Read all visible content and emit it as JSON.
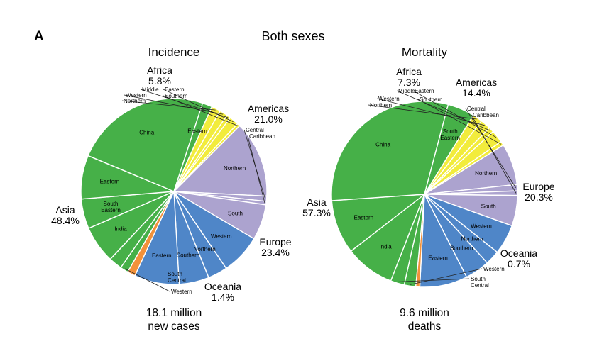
{
  "figure": {
    "panel_letter": "A",
    "title": "Both sexes"
  },
  "colors": {
    "Africa": "#f2ec3c",
    "Americas": "#aca3cf",
    "Europe": "#4f86c8",
    "Oceania": "#f2913a",
    "Asia": "#46b048"
  },
  "chart_data": [
    {
      "type": "pie",
      "title": "Incidence",
      "caption": [
        "18.1 million",
        "new cases"
      ],
      "regions": [
        {
          "name": "Americas",
          "pct_label": "21.0%",
          "value": 21.0,
          "subregions": [
            {
              "name": "Northern",
              "value": 13.3
            },
            {
              "name": "Central",
              "value": 0.9
            },
            {
              "name": "Caribbean",
              "value": 0.6
            },
            {
              "name": "South",
              "value": 6.2
            }
          ]
        },
        {
          "name": "Europe",
          "pct_label": "23.4%",
          "value": 23.4,
          "subregions": [
            {
              "name": "Western",
              "value": 7.0
            },
            {
              "name": "Northern",
              "value": 3.4
            },
            {
              "name": "Southern",
              "value": 5.2
            },
            {
              "name": "Eastern",
              "value": 7.8
            }
          ]
        },
        {
          "name": "Oceania",
          "pct_label": "1.4%",
          "value": 1.4,
          "subregions": [
            {
              "name": "",
              "value": 1.4
            }
          ]
        },
        {
          "name": "Asia",
          "pct_label": "48.4%",
          "value": 48.4,
          "subregions": [
            {
              "name": "Western",
              "value": 1.4
            },
            {
              "name": "South Central",
              "value": 2.3
            },
            {
              "name": "India",
              "value": 6.5
            },
            {
              "name": "South Eastern",
              "value": 5.2
            },
            {
              "name": "Eastern",
              "value": 7.6
            },
            {
              "name": "China",
              "value": 23.7
            },
            {
              "name": "Eastern",
              "value": 1.7
            }
          ]
        },
        {
          "name": "Africa",
          "pct_label": "5.8%",
          "value": 5.8,
          "subregions": [
            {
              "name": "Northern",
              "value": 1.6
            },
            {
              "name": "Western",
              "value": 1.4
            },
            {
              "name": "Middle",
              "value": 0.7
            },
            {
              "name": "Eastern",
              "value": 1.6
            },
            {
              "name": "Southern",
              "value": 0.5
            }
          ]
        }
      ]
    },
    {
      "type": "pie",
      "title": "Mortality",
      "caption": [
        "9.6 million",
        "deaths"
      ],
      "regions": [
        {
          "name": "Americas",
          "pct_label": "14.4%",
          "value": 14.4,
          "subregions": [
            {
              "name": "Northern",
              "value": 7.2
            },
            {
              "name": "Central",
              "value": 1.1
            },
            {
              "name": "Caribbean",
              "value": 0.8
            },
            {
              "name": "South",
              "value": 5.3
            }
          ]
        },
        {
          "name": "Europe",
          "pct_label": "20.3%",
          "value": 20.3,
          "subregions": [
            {
              "name": "Western",
              "value": 5.2
            },
            {
              "name": "Northern",
              "value": 2.5
            },
            {
              "name": "Southern",
              "value": 4.3
            },
            {
              "name": "Eastern",
              "value": 8.3
            }
          ]
        },
        {
          "name": "Oceania",
          "pct_label": "0.7%",
          "value": 0.7,
          "subregions": [
            {
              "name": "",
              "value": 0.7
            }
          ]
        },
        {
          "name": "Asia",
          "pct_label": "57.3%",
          "value": 57.3,
          "subregions": [
            {
              "name": "Western",
              "value": 2.0
            },
            {
              "name": "South Central",
              "value": 2.4
            },
            {
              "name": "India",
              "value": 8.6
            },
            {
              "name": "Eastern",
              "value": 9.4
            },
            {
              "name": "China",
              "value": 30.2
            },
            {
              "name": "South Eastern",
              "value": 4.7
            }
          ]
        },
        {
          "name": "Africa",
          "pct_label": "7.3%",
          "value": 7.3,
          "subregions": [
            {
              "name": "Northern",
              "value": 1.7
            },
            {
              "name": "Western",
              "value": 1.8
            },
            {
              "name": "Middle",
              "value": 0.9
            },
            {
              "name": "Eastern",
              "value": 2.2
            },
            {
              "name": "Southern",
              "value": 0.7
            }
          ]
        }
      ]
    }
  ]
}
